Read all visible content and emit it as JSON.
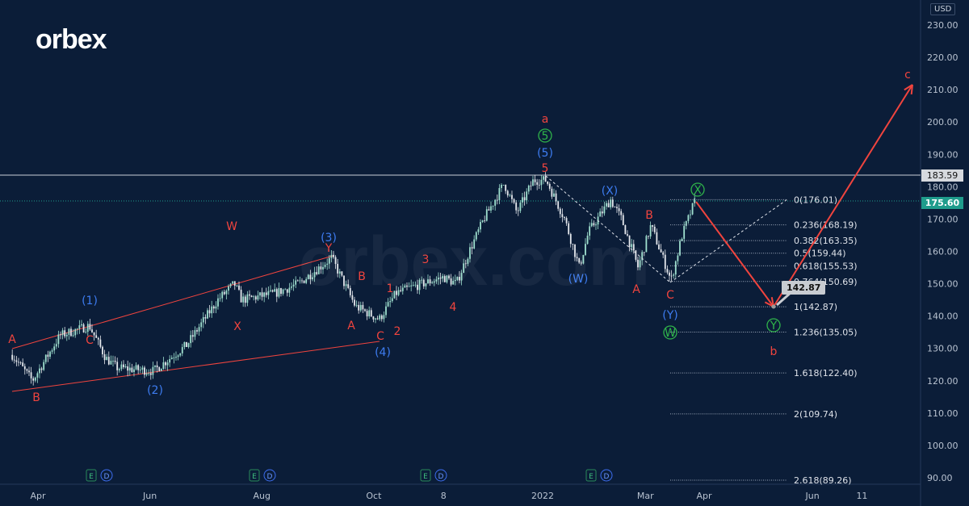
{
  "logo_text": "orbex",
  "watermark_text": "orbex.com",
  "currency_label": "USD",
  "chart_data": {
    "type": "candlestick",
    "currency": "USD",
    "ylim": [
      90,
      230
    ],
    "y_ticks": [
      "230.00",
      "220.00",
      "210.00",
      "200.00",
      "190.00",
      "180.00",
      "170.00",
      "160.00",
      "150.00",
      "140.00",
      "130.00",
      "120.00",
      "110.00",
      "100.00",
      "90.00"
    ],
    "x_ticks": [
      {
        "label": "Apr",
        "date": "2021-04-01"
      },
      {
        "label": "Jun",
        "date": "2021-06-01"
      },
      {
        "label": "Aug",
        "date": "2021-08-01"
      },
      {
        "label": "Oct",
        "date": "2021-10-01"
      },
      {
        "label": "8",
        "date": "2021-11-08"
      },
      {
        "label": "2022",
        "date": "2022-01-01"
      },
      {
        "label": "Mar",
        "date": "2022-02-26"
      },
      {
        "label": "Apr",
        "date": "2022-03-30"
      },
      {
        "label": "Jun",
        "date": "2022-05-28"
      },
      {
        "label": "11",
        "date": "2022-06-24"
      }
    ],
    "price_path": [
      [
        "2021-03-18",
        128
      ],
      [
        "2021-03-29",
        120
      ],
      [
        "2021-04-13",
        134
      ],
      [
        "2021-04-29",
        137
      ],
      [
        "2021-05-08",
        127
      ],
      [
        "2021-05-14",
        124
      ],
      [
        "2021-06-03",
        123
      ],
      [
        "2021-06-21",
        131
      ],
      [
        "2021-07-08",
        145
      ],
      [
        "2021-07-17",
        150
      ],
      [
        "2021-07-21",
        145
      ],
      [
        "2021-08-08",
        147
      ],
      [
        "2021-08-21",
        150
      ],
      [
        "2021-09-08",
        158
      ],
      [
        "2021-09-21",
        143
      ],
      [
        "2021-10-04",
        139
      ],
      [
        "2021-10-13",
        147
      ],
      [
        "2021-10-22",
        149
      ],
      [
        "2021-11-08",
        152
      ],
      [
        "2021-11-15",
        150
      ],
      [
        "2021-11-22",
        160
      ],
      [
        "2021-11-30",
        170
      ],
      [
        "2021-12-11",
        181
      ],
      [
        "2021-12-18",
        172
      ],
      [
        "2021-12-27",
        182
      ],
      [
        "2022-01-03",
        182
      ],
      [
        "2022-01-13",
        170
      ],
      [
        "2022-01-21",
        155
      ],
      [
        "2022-01-26",
        166
      ],
      [
        "2022-02-07",
        176
      ],
      [
        "2022-02-13",
        170
      ],
      [
        "2022-02-22",
        155
      ],
      [
        "2022-03-01",
        168
      ],
      [
        "2022-03-12",
        151
      ],
      [
        "2022-03-18",
        165
      ],
      [
        "2022-03-25",
        175.6
      ]
    ],
    "last_price": "175.60",
    "horizontal_level": "183.59",
    "target_callout": "142.87",
    "fibonacci_levels": [
      "0(176.01)",
      "0.236(168.19)",
      "0.382(163.35)",
      "0.5(159.44)",
      "0.618(155.53)",
      "0.764(150.69)",
      "1(142.87)",
      "1.236(135.05)",
      "1.618(122.40)",
      "2(109.74)",
      "2.618(89.26)"
    ],
    "fibonacci_prices": [
      176.01,
      168.19,
      163.35,
      159.44,
      155.53,
      150.69,
      142.87,
      135.05,
      122.4,
      109.74,
      89.26
    ],
    "wave_labels": [
      {
        "text": "A",
        "color": "red"
      },
      {
        "text": "B",
        "color": "red"
      },
      {
        "text": "C",
        "color": "red"
      },
      {
        "text": "W",
        "color": "red"
      },
      {
        "text": "X",
        "color": "red"
      },
      {
        "text": "Y",
        "color": "red"
      },
      {
        "text": "A",
        "color": "red"
      },
      {
        "text": "B",
        "color": "red"
      },
      {
        "text": "C",
        "color": "red"
      },
      {
        "text": "1",
        "color": "red"
      },
      {
        "text": "2",
        "color": "red"
      },
      {
        "text": "3",
        "color": "red"
      },
      {
        "text": "4",
        "color": "red"
      },
      {
        "text": "5",
        "color": "red"
      },
      {
        "text": "a",
        "color": "red"
      },
      {
        "text": "A",
        "color": "red"
      },
      {
        "text": "B",
        "color": "red"
      },
      {
        "text": "C",
        "color": "red"
      },
      {
        "text": "b",
        "color": "red"
      },
      {
        "text": "c",
        "color": "red"
      },
      {
        "text": "(1)",
        "color": "blue"
      },
      {
        "text": "(2)",
        "color": "blue"
      },
      {
        "text": "(3)",
        "color": "blue"
      },
      {
        "text": "(4)",
        "color": "blue"
      },
      {
        "text": "(5)",
        "color": "blue"
      },
      {
        "text": "(X)",
        "color": "blue"
      },
      {
        "text": "(W)",
        "color": "blue"
      },
      {
        "text": "(Y)",
        "color": "blue"
      },
      {
        "text": "5",
        "color": "green"
      },
      {
        "text": "X",
        "color": "green"
      },
      {
        "text": "W",
        "color": "green"
      },
      {
        "text": "Y",
        "color": "green"
      }
    ],
    "event_markers": [
      {
        "e": "E",
        "d": "D"
      },
      {
        "e": "E",
        "d": "D"
      },
      {
        "e": "E",
        "d": "D"
      },
      {
        "e": "E",
        "d": "D"
      }
    ],
    "colors": {
      "background": "#0b1d38",
      "red": "#f0443e",
      "blue": "#3d7cf0",
      "green": "#2fb34a",
      "up": "#9fe0cf",
      "down": "#e6e9ee",
      "last_price": "#1f9c8c"
    }
  }
}
